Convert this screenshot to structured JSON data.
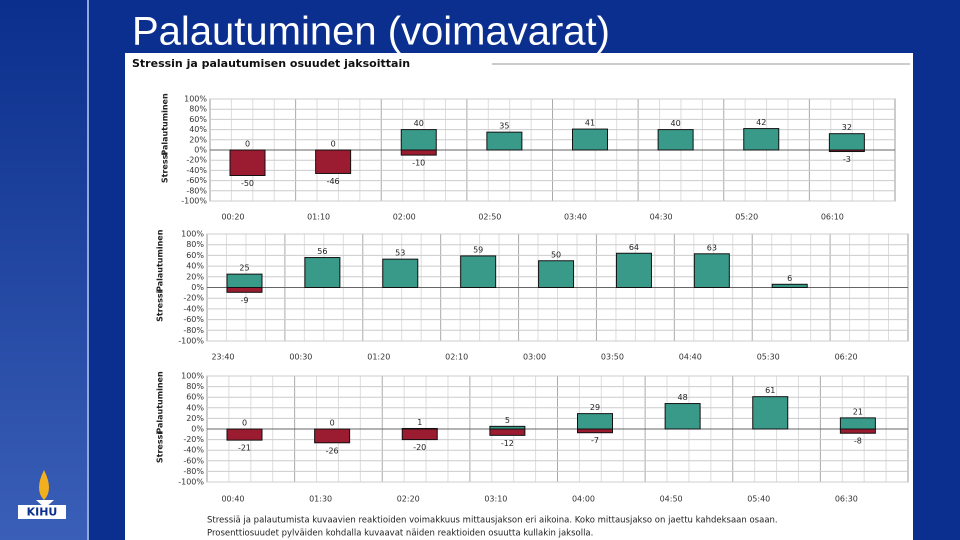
{
  "slide_title": "Palautuminen (voimavarat)",
  "panel_title": "Stressin ja palautumisen osuudet jaksoittain",
  "caption": [
    "Stressiä ja palautumista kuvaavien reaktioiden voimakkuus mittausjakson eri aikoina. Koko mittausjakso on jaettu kahdeksaan osaan.",
    "Prosenttiosuudet pylväiden kohdalla kuvaavat näiden reaktioiden osuutta kullakin jaksolla."
  ],
  "logo": "KIHU",
  "chart_data": [
    {
      "type": "bar",
      "categories": [
        "00:20",
        "01:10",
        "02:00",
        "02:50",
        "03:40",
        "04:30",
        "05:20",
        "06:10"
      ],
      "series": [
        {
          "name": "Palautuminen",
          "color": "#3a9a8a",
          "values": [
            0,
            0,
            40,
            35,
            41,
            40,
            42,
            32
          ]
        },
        {
          "name": "Stressi",
          "color": "#9b1b30",
          "values": [
            -50,
            -46,
            -10,
            null,
            null,
            null,
            null,
            -3
          ]
        }
      ],
      "ylim": [
        -100,
        100
      ],
      "yticks": [
        {
          "value": 100,
          "label": "100%"
        },
        {
          "value": 80,
          "label": "80%"
        },
        {
          "value": 60,
          "label": "60%"
        },
        {
          "value": 40,
          "label": "40%"
        },
        {
          "value": 20,
          "label": "20%"
        },
        {
          "value": 0,
          "label": "0%"
        },
        {
          "value": -20,
          "label": "-20%"
        },
        {
          "value": -40,
          "label": "-40%"
        },
        {
          "value": -60,
          "label": "-60%"
        },
        {
          "value": -80,
          "label": "-80%"
        },
        {
          "value": -100,
          "label": "-100%"
        }
      ],
      "grid": true
    },
    {
      "type": "bar",
      "categories": [
        "23:40",
        "00:30",
        "01:20",
        "02:10",
        "03:00",
        "03:50",
        "04:40",
        "05:30",
        "06:20"
      ],
      "series": [
        {
          "name": "Palautuminen",
          "color": "#3a9a8a",
          "values": [
            25,
            56,
            53,
            59,
            50,
            64,
            63,
            6,
            null
          ]
        },
        {
          "name": "Stressi",
          "color": "#9b1b30",
          "values": [
            -9,
            null,
            null,
            null,
            null,
            null,
            null,
            null,
            null
          ]
        }
      ],
      "ylim": [
        -100,
        100
      ],
      "yticks": [
        {
          "value": 100,
          "label": "100%"
        },
        {
          "value": 80,
          "label": "80%"
        },
        {
          "value": 60,
          "label": "60%"
        },
        {
          "value": 40,
          "label": "40%"
        },
        {
          "value": 20,
          "label": "20%"
        },
        {
          "value": 0,
          "label": "0%"
        },
        {
          "value": -20,
          "label": "-20%"
        },
        {
          "value": -40,
          "label": "-40%"
        },
        {
          "value": -60,
          "label": "-60%"
        },
        {
          "value": -80,
          "label": "-80%"
        },
        {
          "value": -100,
          "label": "-100%"
        }
      ],
      "grid": true
    },
    {
      "type": "bar",
      "categories": [
        "00:40",
        "01:30",
        "02:20",
        "03:10",
        "04:00",
        "04:50",
        "05:40",
        "06:30"
      ],
      "series": [
        {
          "name": "Palautuminen",
          "color": "#3a9a8a",
          "values": [
            0,
            0,
            1,
            5,
            29,
            48,
            61,
            21
          ]
        },
        {
          "name": "Stressi",
          "color": "#9b1b30",
          "values": [
            -21,
            -26,
            -20,
            -12,
            -7,
            null,
            null,
            -8
          ]
        }
      ],
      "ylim": [
        -100,
        100
      ],
      "yticks": [
        {
          "value": 100,
          "label": "100%"
        },
        {
          "value": 80,
          "label": "80%"
        },
        {
          "value": 60,
          "label": "60%"
        },
        {
          "value": 40,
          "label": "40%"
        },
        {
          "value": 20,
          "label": "20%"
        },
        {
          "value": 0,
          "label": "0%"
        },
        {
          "value": -20,
          "label": "-20%"
        },
        {
          "value": -40,
          "label": "-40%"
        },
        {
          "value": -60,
          "label": "-60%"
        },
        {
          "value": -80,
          "label": "-80%"
        },
        {
          "value": -100,
          "label": "-100%"
        }
      ],
      "grid": true
    }
  ]
}
